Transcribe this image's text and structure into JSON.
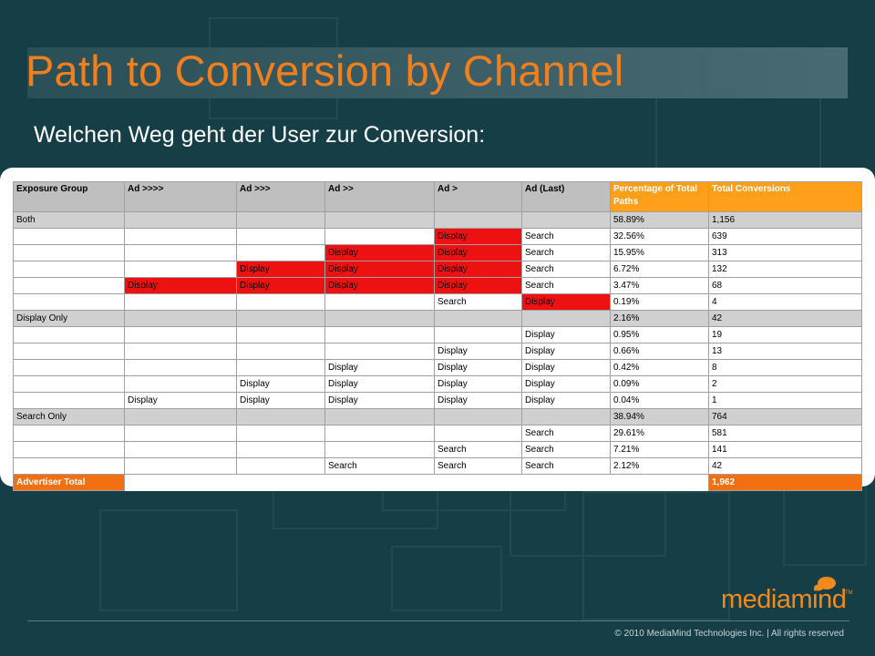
{
  "slide": {
    "title": "Path to Conversion by Channel",
    "subtitle": "Welchen Weg geht der User zur Conversion:"
  },
  "colors": {
    "background": "#163e47",
    "title": "#f07f1e",
    "header_orange": "#ff9f1a",
    "display_red": "#ee1111",
    "total_orange": "#f26f12"
  },
  "table": {
    "headers": [
      "Exposure Group",
      "Ad >>>>",
      "Ad >>>",
      "Ad >>",
      "Ad >",
      "Ad (Last)",
      "Percentage of Total Paths",
      "Total Conversions"
    ],
    "rows": [
      {
        "cells": [
          "Both",
          "",
          "",
          "",
          "",
          "",
          "58.89%",
          "1,156"
        ]
      },
      {
        "cells": [
          "",
          "",
          "",
          "",
          "Display",
          "Search",
          "32.56%",
          "639"
        ]
      },
      {
        "cells": [
          "",
          "",
          "",
          "Display",
          "Display",
          "Search",
          "15.95%",
          "313"
        ]
      },
      {
        "cells": [
          "",
          "",
          "Display",
          "Display",
          "Display",
          "Search",
          "6.72%",
          "132"
        ]
      },
      {
        "cells": [
          "",
          "Display",
          "Display",
          "Display",
          "Display",
          "Search",
          "3.47%",
          "68"
        ]
      },
      {
        "cells": [
          "",
          "",
          "",
          "",
          "Search",
          "Display",
          "0.19%",
          "4"
        ]
      },
      {
        "cells": [
          "Display Only",
          "",
          "",
          "",
          "",
          "",
          "2.16%",
          "42"
        ]
      },
      {
        "cells": [
          "",
          "",
          "",
          "",
          "",
          "Display",
          "0.95%",
          "19"
        ]
      },
      {
        "cells": [
          "",
          "",
          "",
          "",
          "Display",
          "Display",
          "0.66%",
          "13"
        ]
      },
      {
        "cells": [
          "",
          "",
          "",
          "Display",
          "Display",
          "Display",
          "0.42%",
          "8"
        ]
      },
      {
        "cells": [
          "",
          "",
          "Display",
          "Display",
          "Display",
          "Display",
          "0.09%",
          "2"
        ]
      },
      {
        "cells": [
          "",
          "Display",
          "Display",
          "Display",
          "Display",
          "Display",
          "0.04%",
          "1"
        ]
      },
      {
        "cells": [
          "Search Only",
          "",
          "",
          "",
          "",
          "",
          "38.94%",
          "764"
        ]
      },
      {
        "cells": [
          "",
          "",
          "",
          "",
          "",
          "Search",
          "29.61%",
          "581"
        ]
      },
      {
        "cells": [
          "",
          "",
          "",
          "",
          "Search",
          "Search",
          "7.21%",
          "141"
        ]
      },
      {
        "cells": [
          "",
          "",
          "",
          "Search",
          "Search",
          "Search",
          "2.12%",
          "42"
        ]
      }
    ],
    "total": {
      "label": "Advertiser Total",
      "value": "1,962"
    }
  },
  "footer": {
    "logo": "mediamind",
    "logo_tm": "TM",
    "copyright": "© 2010 MediaMind Technologies Inc. | All rights reserved"
  }
}
